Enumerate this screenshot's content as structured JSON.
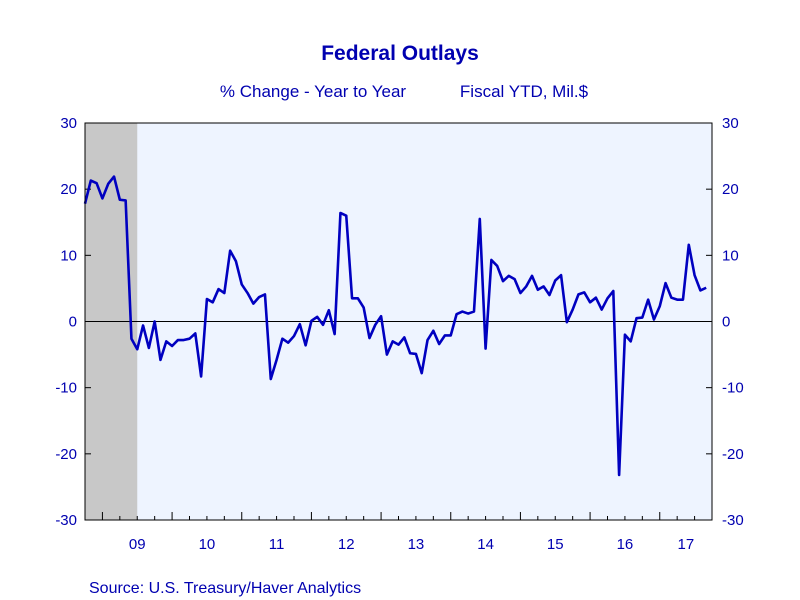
{
  "chart_data": {
    "type": "line",
    "title": "Federal Outlays",
    "subtitle_left": "% Change - Year to Year",
    "subtitle_right": "Fiscal YTD, Mil.$",
    "source": "Source:  U.S. Treasury/Haver Analytics",
    "ylim": [
      -30,
      30
    ],
    "yticks": [
      -30,
      -20,
      -10,
      0,
      10,
      20,
      30
    ],
    "ytick_labels": [
      "-30",
      "-20",
      "-10",
      "0",
      "10",
      "20",
      "30"
    ],
    "x_range": [
      "2008-10",
      "2017-10"
    ],
    "x_tick_labels": [
      {
        "label": "09",
        "year": 2009
      },
      {
        "label": "10",
        "year": 2010
      },
      {
        "label": "11",
        "year": 2011
      },
      {
        "label": "12",
        "year": 2012
      },
      {
        "label": "13",
        "year": 2013
      },
      {
        "label": "14",
        "year": 2014
      },
      {
        "label": "15",
        "year": 2015
      },
      {
        "label": "16",
        "year": 2016
      },
      {
        "label": "17",
        "year": 2017
      }
    ],
    "recession": {
      "start": "2008-10",
      "end": "2009-06"
    },
    "colors": {
      "line": "#0000c0",
      "plot_background": "#eef4ff",
      "recession": "#c8c8c8",
      "text": "#0000b0",
      "frame": "#000000"
    },
    "series": [
      {
        "start": "2008-10",
        "values": [
          17.8,
          21.3,
          20.9,
          18.6,
          20.8,
          21.9,
          18.4,
          18.3,
          -2.6,
          -4.2,
          -0.6,
          -4.0,
          0.0,
          -5.8,
          -3.0,
          -3.7,
          -2.8,
          -2.8,
          -2.6,
          -1.8,
          -8.3,
          3.4,
          2.9,
          4.9,
          4.3,
          10.7,
          9.1,
          5.6,
          4.3,
          2.7,
          3.7,
          4.1,
          -8.7,
          -5.8,
          -2.6,
          -3.2,
          -2.2,
          -0.4,
          -3.6,
          0.1,
          0.7,
          -0.5,
          1.7,
          -1.9,
          16.4,
          16.0,
          3.5,
          3.5,
          2.1,
          -2.5,
          -0.5,
          0.8,
          -5.0,
          -3.0,
          -3.5,
          -2.4,
          -4.8,
          -4.9,
          -7.8,
          -2.8,
          -1.4,
          -3.4,
          -2.1,
          -2.1,
          1.1,
          1.5,
          1.2,
          1.5,
          15.5,
          -4.1,
          9.3,
          8.4,
          6.1,
          6.9,
          6.4,
          4.3,
          5.3,
          6.9,
          4.8,
          5.3,
          4.0,
          6.2,
          7.0,
          -0.1,
          1.8,
          4.1,
          4.4,
          2.9,
          3.6,
          1.8,
          3.5,
          4.6,
          -23.2,
          -2.0,
          -3.0,
          0.5,
          0.6,
          3.3,
          0.3,
          2.3,
          5.8,
          3.6,
          3.3,
          3.3,
          11.6,
          7.0,
          4.7,
          5.1
        ]
      }
    ]
  }
}
